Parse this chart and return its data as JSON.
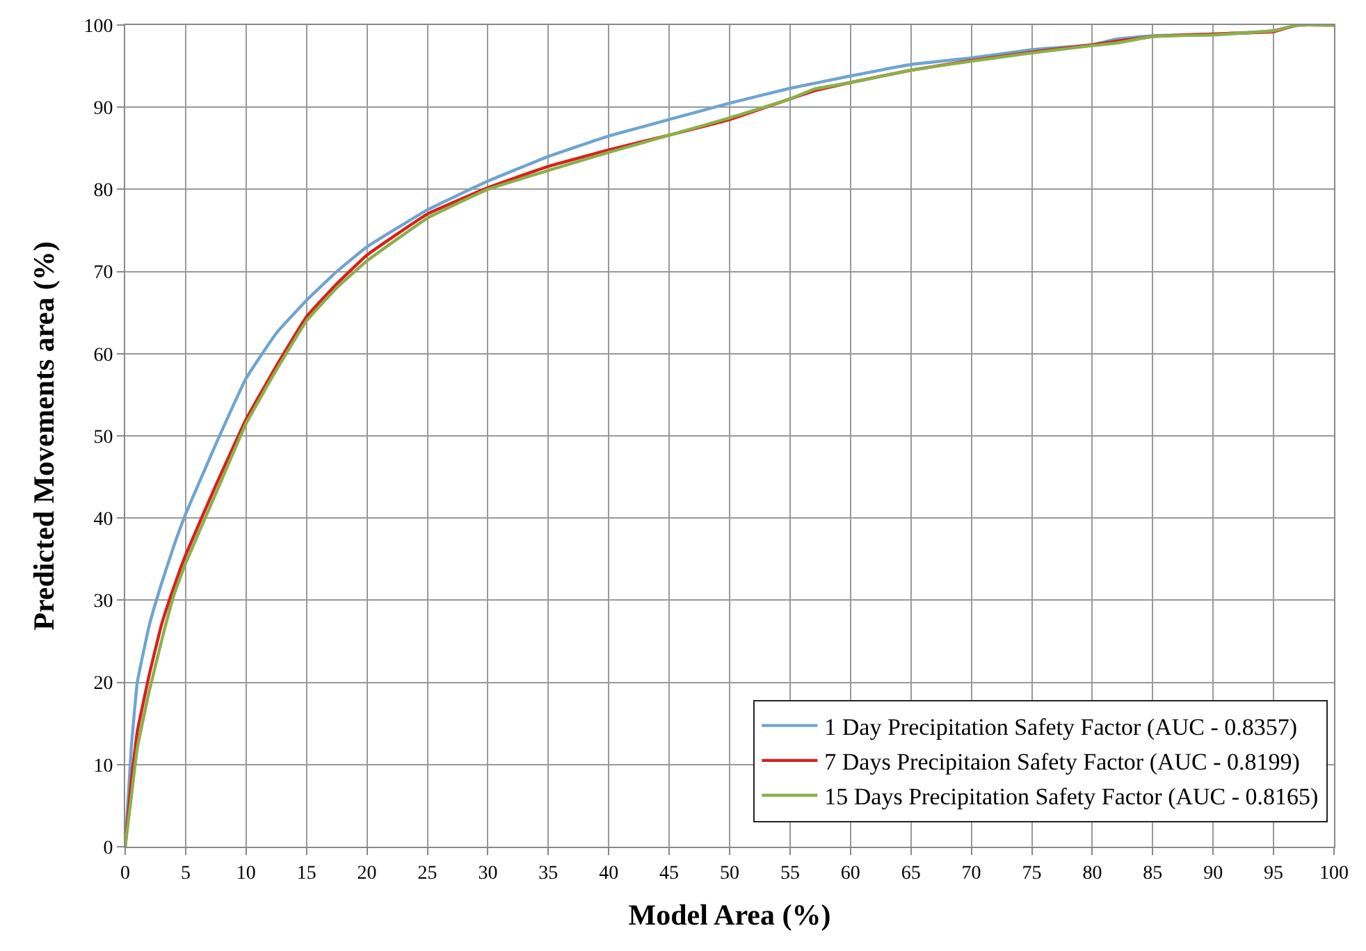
{
  "chart_data": {
    "type": "line",
    "xlabel": "Model Area (%)",
    "ylabel": "Predicted Movements area (%)",
    "xlim": [
      0,
      100
    ],
    "ylim": [
      0,
      100
    ],
    "xticks": [
      0,
      5,
      10,
      15,
      20,
      25,
      30,
      35,
      40,
      45,
      50,
      55,
      60,
      65,
      70,
      75,
      80,
      85,
      90,
      95,
      100
    ],
    "yticks": [
      0,
      10,
      20,
      30,
      40,
      50,
      60,
      70,
      80,
      90,
      100
    ],
    "grid": true,
    "legend": "bottom right",
    "marker": "none",
    "line_style": "solid",
    "series": [
      {
        "name": "1 Day Precipitation Safety Factor (AUC - 0.8357)",
        "color": "#6fa4cf",
        "x": [
          0,
          0.5,
          1,
          2,
          3,
          4,
          5,
          7.5,
          10,
          12.5,
          15,
          17.5,
          20,
          25,
          30,
          35,
          40,
          45,
          50,
          55,
          60,
          65,
          70,
          75,
          80,
          82,
          85,
          90,
          95,
          97,
          100
        ],
        "values": [
          0,
          12,
          20,
          27,
          32,
          36.5,
          40.5,
          49,
          57,
          62.5,
          66.5,
          70,
          73,
          77.5,
          81,
          84,
          86.5,
          88.5,
          90.5,
          92.3,
          93.8,
          95.2,
          96,
          97,
          97.6,
          98.3,
          98.7,
          98.9,
          99.3,
          100,
          100
        ]
      },
      {
        "name": "7 Days Precipitaion Safety Factor (AUC - 0.8199)",
        "color": "#d9201a",
        "x": [
          0,
          0.5,
          1,
          2,
          3,
          4,
          5,
          7.5,
          10,
          12.5,
          15,
          17.5,
          20,
          25,
          30,
          35,
          40,
          45,
          50,
          55,
          57,
          60,
          65,
          70,
          75,
          80,
          85,
          90,
          95,
          97,
          100
        ],
        "values": [
          0,
          8,
          14,
          21,
          27,
          31.5,
          35.5,
          44,
          52,
          58.5,
          64.5,
          68.5,
          72,
          77,
          80.2,
          82.8,
          84.8,
          86.6,
          88.5,
          91,
          92,
          93,
          94.5,
          95.7,
          96.7,
          97.6,
          98.6,
          98.9,
          99.2,
          100,
          100
        ]
      },
      {
        "name": "15 Days Precipitation Safety Factor (AUC - 0.8165)",
        "color": "#8ab04a",
        "x": [
          0,
          0.5,
          1,
          2,
          3,
          4,
          5,
          7.5,
          10,
          12.5,
          15,
          17.5,
          20,
          25,
          30,
          35,
          40,
          45,
          50,
          55,
          57,
          60,
          65,
          70,
          75,
          80,
          82,
          85,
          90,
          95,
          97,
          100
        ],
        "values": [
          0,
          6,
          12,
          19,
          25,
          30.5,
          34.5,
          43,
          51.5,
          58,
          64,
          68,
          71.3,
          76.5,
          80,
          82.3,
          84.5,
          86.6,
          88.7,
          91,
          92.2,
          93,
          94.5,
          95.6,
          96.6,
          97.5,
          97.8,
          98.6,
          98.8,
          99.3,
          100,
          100
        ]
      }
    ]
  }
}
